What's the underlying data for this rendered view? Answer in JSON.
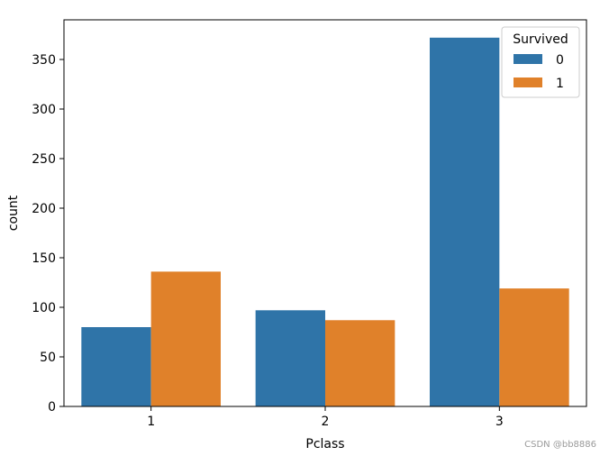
{
  "chart_data": {
    "type": "bar",
    "xlabel": "Pclass",
    "ylabel": "count",
    "categories": [
      "1",
      "2",
      "3"
    ],
    "series": [
      {
        "name": "0",
        "values": [
          80,
          97,
          372
        ],
        "color": "#2f74a8"
      },
      {
        "name": "1",
        "values": [
          136,
          87,
          119
        ],
        "color": "#e0812a"
      }
    ],
    "ylim": [
      0,
      390
    ],
    "yticks": [
      0,
      50,
      100,
      150,
      200,
      250,
      300,
      350
    ],
    "legend": {
      "title": "Survived",
      "placement": "top-right"
    },
    "grid": false
  },
  "watermark": "CSDN @bb8886"
}
